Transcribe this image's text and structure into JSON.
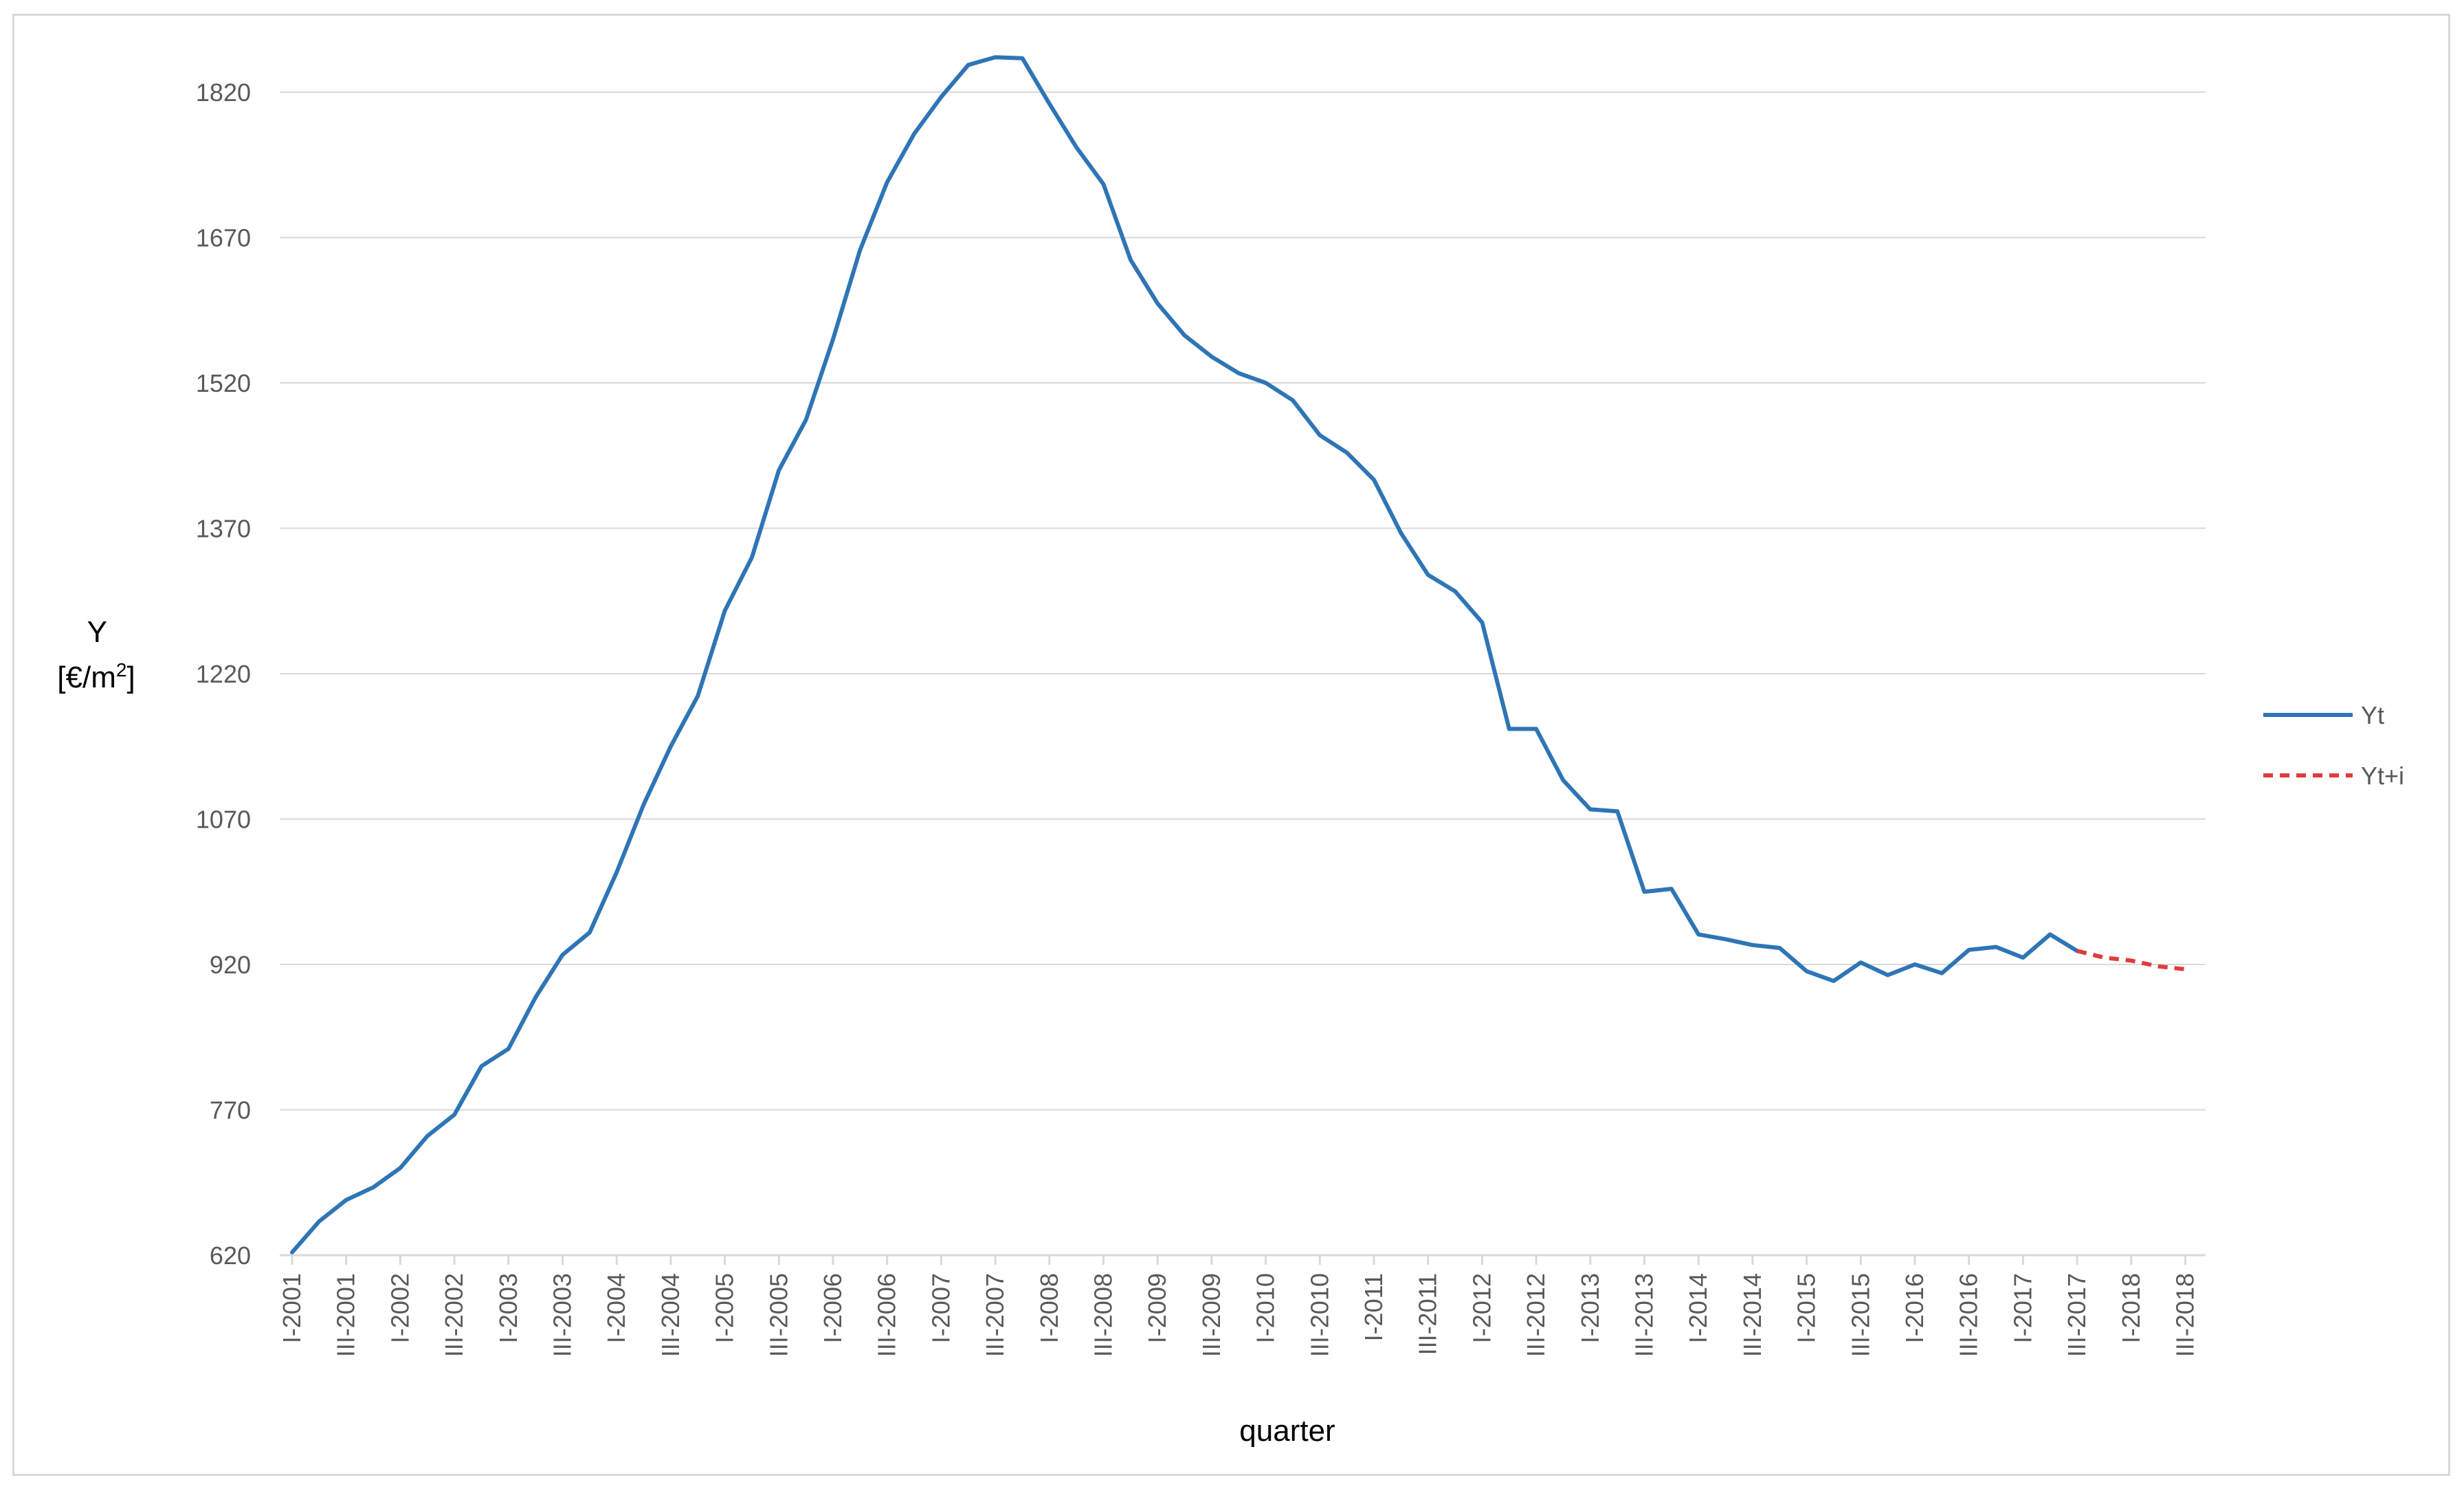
{
  "chart_data": {
    "type": "line",
    "title": "",
    "xlabel": "quarter",
    "ylabel_line1": "Y",
    "ylabel_line2_prefix": "[€/m",
    "ylabel_line2_sup": "2",
    "ylabel_line2_suffix": "]",
    "ylim": [
      620,
      1820
    ],
    "yticks": [
      620,
      770,
      920,
      1070,
      1220,
      1370,
      1520,
      1670,
      1820
    ],
    "grid": true,
    "legend_position": "right",
    "x_tick_labels": [
      "I-2001",
      "III-2001",
      "I-2002",
      "III-2002",
      "I-2003",
      "III-2003",
      "I-2004",
      "III-2004",
      "I-2005",
      "III-2005",
      "I-2006",
      "III-2006",
      "I-2007",
      "III-2007",
      "I-2008",
      "III-2008",
      "I-2009",
      "III-2009",
      "I-2010",
      "III-2010",
      "I-2011",
      "III-2011",
      "I-2012",
      "III-2012",
      "I-2013",
      "III-2013",
      "I-2014",
      "III-2014",
      "I-2015",
      "III-2015",
      "I-2016",
      "III-2016",
      "I-2017",
      "III-2017",
      "I-2018",
      "III-2018"
    ],
    "series": [
      {
        "name": "Yt",
        "color": "#2e75b6",
        "style": "solid",
        "x_start": "I-2001",
        "values": [
          623,
          655,
          677,
          690,
          710,
          743,
          765,
          815,
          833,
          886,
          930,
          953,
          1015,
          1085,
          1145,
          1197,
          1285,
          1340,
          1430,
          1482,
          1565,
          1657,
          1727,
          1777,
          1815,
          1848,
          1856,
          1855,
          1808,
          1763,
          1725,
          1647,
          1602,
          1569,
          1547,
          1530,
          1520,
          1502,
          1466,
          1448,
          1420,
          1365,
          1322,
          1305,
          1273,
          1163,
          1163,
          1110,
          1080,
          1078,
          995,
          998,
          951,
          946,
          940,
          937,
          913,
          903,
          922,
          909,
          920,
          911,
          935,
          938,
          927,
          951,
          934
        ]
      },
      {
        "name": "Yt+i",
        "color": "#e03c3c",
        "style": "dashed",
        "x_start": "III-2017",
        "values": [
          934,
          927,
          924,
          918,
          915
        ]
      }
    ]
  }
}
